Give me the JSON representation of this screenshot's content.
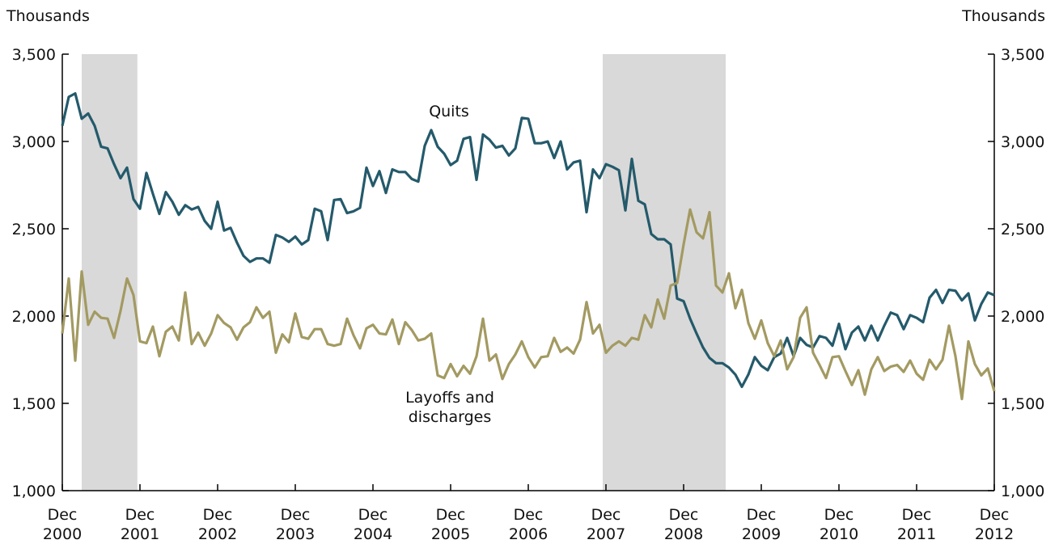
{
  "chart_data": {
    "type": "line",
    "y_label": "Thousands",
    "y2_label": "Thousands",
    "categories": [
      "Dec 2000",
      null,
      null,
      null,
      null,
      null,
      null,
      null,
      null,
      null,
      null,
      null,
      "Dec 2001",
      null,
      null,
      null,
      null,
      null,
      null,
      null,
      null,
      null,
      null,
      null,
      "Dec 2002",
      null,
      null,
      null,
      null,
      null,
      null,
      null,
      null,
      null,
      null,
      null,
      "Dec 2003",
      null,
      null,
      null,
      null,
      null,
      null,
      null,
      null,
      null,
      null,
      null,
      "Dec 2004",
      null,
      null,
      null,
      null,
      null,
      null,
      null,
      null,
      null,
      null,
      null,
      "Dec 2005",
      null,
      null,
      null,
      null,
      null,
      null,
      null,
      null,
      null,
      null,
      null,
      "Dec 2006",
      null,
      null,
      null,
      null,
      null,
      null,
      null,
      null,
      null,
      null,
      null,
      "Dec 2007",
      null,
      null,
      null,
      null,
      null,
      null,
      null,
      null,
      null,
      null,
      null,
      "Dec 2008",
      null,
      null,
      null,
      null,
      null,
      null,
      null,
      null,
      null,
      null,
      null,
      "Dec 2009",
      null,
      null,
      null,
      null,
      null,
      null,
      null,
      null,
      null,
      null,
      null,
      "Dec 2010",
      null,
      null,
      null,
      null,
      null,
      null,
      null,
      null,
      null,
      null,
      null,
      "Dec 2011",
      null,
      null,
      null,
      null,
      null,
      null,
      null,
      null,
      null,
      null,
      null,
      "Dec 2012"
    ],
    "recession_spans": [
      [
        3,
        11.6
      ],
      [
        83.5,
        102.5
      ]
    ],
    "recession_color": "#d9d9d9",
    "series": [
      {
        "name": "Quits",
        "color": "#245a6b",
        "values": [
          3090,
          3255,
          3275,
          3130,
          3160,
          3090,
          2970,
          2960,
          2870,
          2790,
          2850,
          2670,
          2615,
          2820,
          2700,
          2585,
          2710,
          2655,
          2580,
          2635,
          2610,
          2625,
          2545,
          2500,
          2655,
          2490,
          2505,
          2420,
          2345,
          2310,
          2330,
          2330,
          2305,
          2465,
          2450,
          2425,
          2455,
          2410,
          2435,
          2615,
          2600,
          2435,
          2665,
          2670,
          2590,
          2600,
          2620,
          2850,
          2745,
          2830,
          2705,
          2840,
          2825,
          2825,
          2785,
          2770,
          2975,
          3065,
          2970,
          2930,
          2865,
          2890,
          3015,
          3025,
          2780,
          3040,
          3010,
          2965,
          2975,
          2920,
          2960,
          3135,
          3130,
          2990,
          2990,
          3000,
          2905,
          3000,
          2840,
          2880,
          2890,
          2595,
          2840,
          2790,
          2870,
          2855,
          2835,
          2605,
          2900,
          2660,
          2640,
          2470,
          2440,
          2440,
          2410,
          2100,
          2085,
          1985,
          1900,
          1820,
          1760,
          1730,
          1730,
          1705,
          1665,
          1595,
          1665,
          1765,
          1715,
          1690,
          1765,
          1785,
          1875,
          1770,
          1875,
          1835,
          1820,
          1885,
          1875,
          1830,
          1955,
          1810,
          1905,
          1940,
          1860,
          1945,
          1860,
          1945,
          2020,
          2005,
          1925,
          2005,
          1990,
          1965,
          2105,
          2150,
          2075,
          2150,
          2145,
          2090,
          2130,
          1975,
          2070,
          2135,
          2120
        ]
      },
      {
        "name": "Layoffs and discharges",
        "color": "#a39a62",
        "values": [
          1900,
          2215,
          1745,
          2255,
          1950,
          2025,
          1990,
          1985,
          1875,
          2030,
          2215,
          2120,
          1855,
          1845,
          1940,
          1770,
          1910,
          1940,
          1860,
          2135,
          1840,
          1905,
          1830,
          1900,
          2005,
          1960,
          1935,
          1865,
          1935,
          1965,
          2050,
          1990,
          2025,
          1790,
          1895,
          1850,
          2015,
          1880,
          1870,
          1925,
          1925,
          1840,
          1830,
          1840,
          1985,
          1890,
          1815,
          1930,
          1950,
          1900,
          1895,
          1980,
          1840,
          1965,
          1920,
          1860,
          1870,
          1900,
          1660,
          1645,
          1725,
          1655,
          1715,
          1670,
          1770,
          1985,
          1745,
          1780,
          1640,
          1725,
          1780,
          1855,
          1765,
          1705,
          1765,
          1770,
          1875,
          1795,
          1820,
          1785,
          1865,
          2080,
          1900,
          1950,
          1790,
          1830,
          1855,
          1830,
          1875,
          1865,
          2005,
          1935,
          2095,
          1985,
          2175,
          2190,
          2410,
          2610,
          2480,
          2445,
          2595,
          2175,
          2135,
          2245,
          2045,
          2150,
          1960,
          1870,
          1975,
          1845,
          1770,
          1860,
          1695,
          1765,
          1990,
          2050,
          1790,
          1720,
          1645,
          1765,
          1770,
          1685,
          1605,
          1690,
          1550,
          1695,
          1765,
          1685,
          1710,
          1720,
          1680,
          1745,
          1670,
          1635,
          1750,
          1695,
          1750,
          1945,
          1770,
          1525,
          1855,
          1725,
          1660,
          1700,
          1570
        ]
      }
    ],
    "ylim": [
      1000,
      3500
    ],
    "yticks": [
      {
        "value": 1000,
        "label": "1,000"
      },
      {
        "value": 1500,
        "label": "1,500"
      },
      {
        "value": 2000,
        "label": "2,000"
      },
      {
        "value": 2500,
        "label": "2,500"
      },
      {
        "value": 3000,
        "label": "3,000"
      },
      {
        "value": 3500,
        "label": "3,500"
      }
    ],
    "y2lim": [
      1000,
      3500
    ],
    "y2ticks": [
      {
        "value": 1000,
        "label": "1,000"
      },
      {
        "value": 1500,
        "label": "1,500"
      },
      {
        "value": 2000,
        "label": "2,000"
      },
      {
        "value": 2500,
        "label": "2,500"
      },
      {
        "value": 3000,
        "label": "3,000"
      },
      {
        "value": 3500,
        "label": "3,500"
      }
    ],
    "grid": false
  }
}
